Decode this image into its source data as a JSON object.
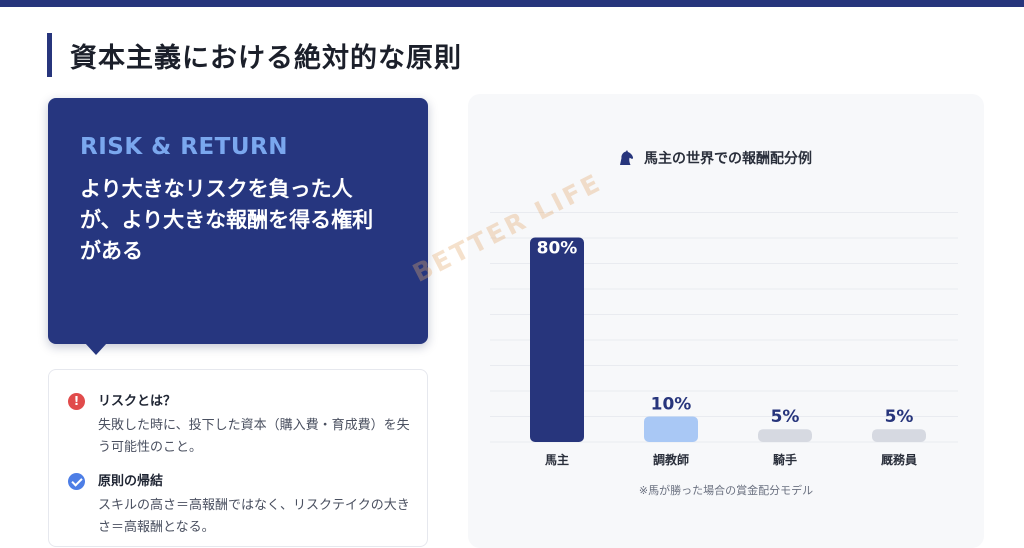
{
  "page": {
    "title": "資本主義における絶対的な原則"
  },
  "callout": {
    "kicker": "RISK & RETURN",
    "body": "より大きなリスクを負った人が、より大きな報酬を得る権利がある"
  },
  "notes": [
    {
      "icon": "alert-circle-icon",
      "icon_color": "#e14b4b",
      "title": "リスクとは？",
      "desc": "失敗した時に、投下した資本（購入費・育成費）を失う可能性のこと。"
    },
    {
      "icon": "check-circle-icon",
      "icon_color": "#4d7ee6",
      "title": "原則の帰結",
      "desc": "スキルの高さ＝高報酬ではなく、リスクテイクの大きさ＝高報酬となる。"
    }
  ],
  "chart_panel": {
    "icon": "horse-icon",
    "note": "※馬が勝った場合の賞金配分モデル"
  },
  "watermark": "BETTER LIFE",
  "chart_data": {
    "type": "bar",
    "title": "馬主の世界での報酬配分例",
    "categories": [
      "馬主",
      "調教師",
      "騎手",
      "厩務員"
    ],
    "values": [
      80,
      10,
      5,
      5
    ],
    "value_labels": [
      "80%",
      "10%",
      "5%",
      "5%"
    ],
    "colors": [
      "#27357c",
      "#a9c8f5",
      "#d6d9e1",
      "#d6d9e1"
    ],
    "ylim": [
      0,
      90
    ],
    "grid": true,
    "legend": "none"
  }
}
